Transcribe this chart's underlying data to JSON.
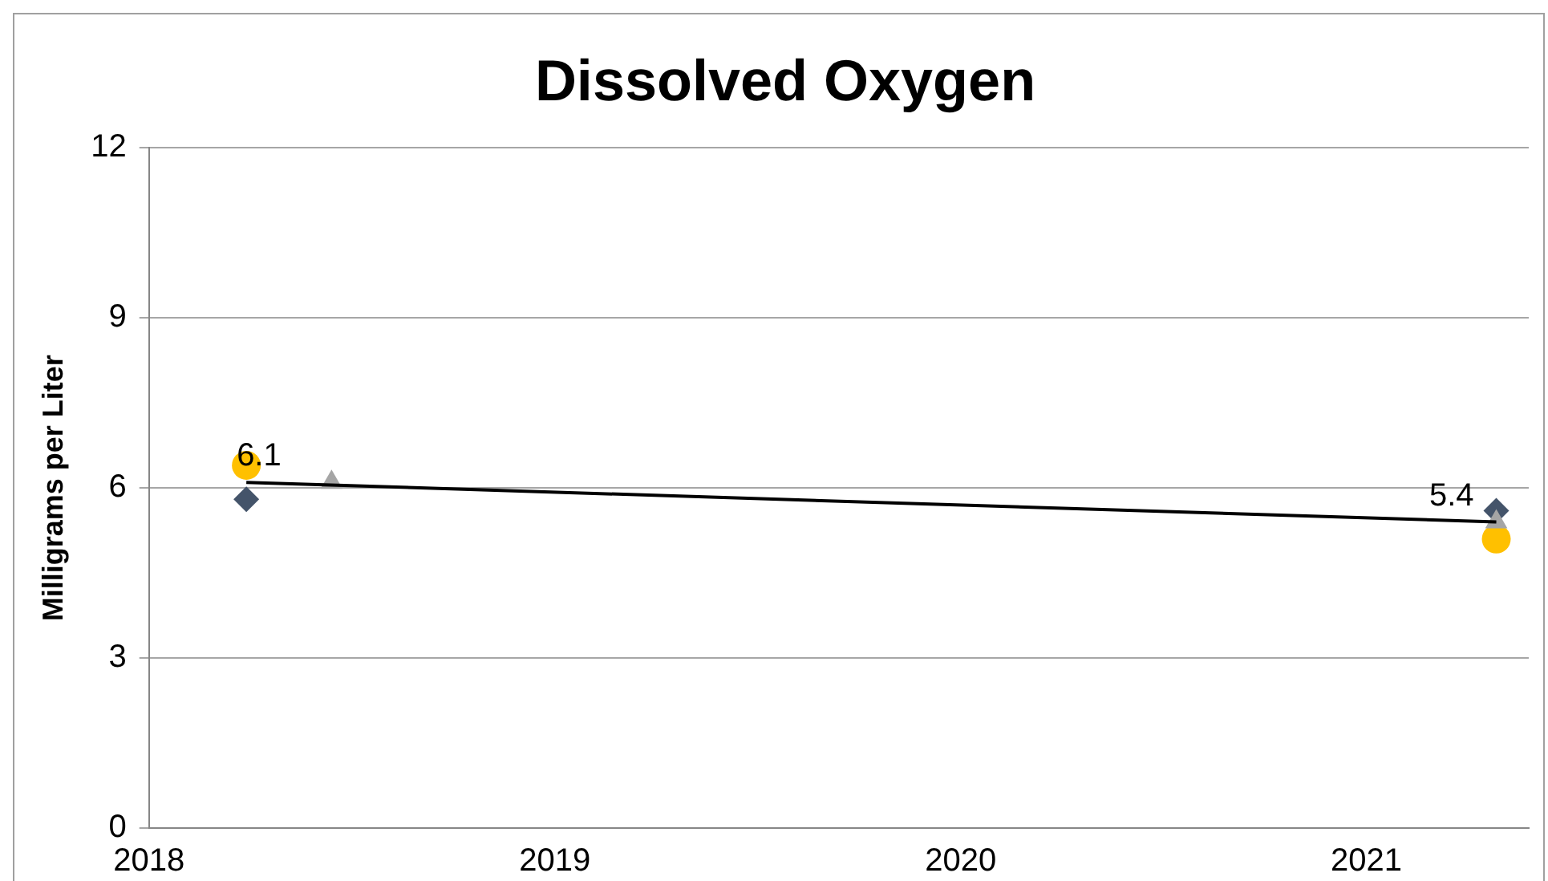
{
  "chart_data": {
    "type": "scatter",
    "title": "Dissolved Oxygen",
    "ylabel": "Milligrams per Liter",
    "xlim": [
      2018,
      2021.4
    ],
    "xticks": [
      2018,
      2019,
      2020,
      2021
    ],
    "ylim": [
      0,
      12
    ],
    "yticks": [
      0,
      3,
      6,
      9,
      12
    ],
    "grid": "y",
    "legend": false,
    "series": [
      {
        "type": "scatter",
        "marker": "circle",
        "color": "#ffc000",
        "x": [
          2018.24,
          2021.32
        ],
        "values": [
          6.4,
          5.1
        ]
      },
      {
        "type": "scatter",
        "marker": "diamond",
        "color": "#44546a",
        "x": [
          2018.24,
          2021.32
        ],
        "values": [
          5.8,
          5.6
        ]
      },
      {
        "type": "scatter",
        "marker": "triangle",
        "color": "#a5a5a5",
        "x": [
          2018.45,
          2021.32
        ],
        "values": [
          6.1,
          5.4
        ]
      },
      {
        "type": "line",
        "marker": "none",
        "color": "#000000",
        "x": [
          2018.24,
          2021.32
        ],
        "values": [
          6.1,
          5.4
        ],
        "value_labels": [
          "6.1",
          "5.4"
        ]
      }
    ]
  }
}
